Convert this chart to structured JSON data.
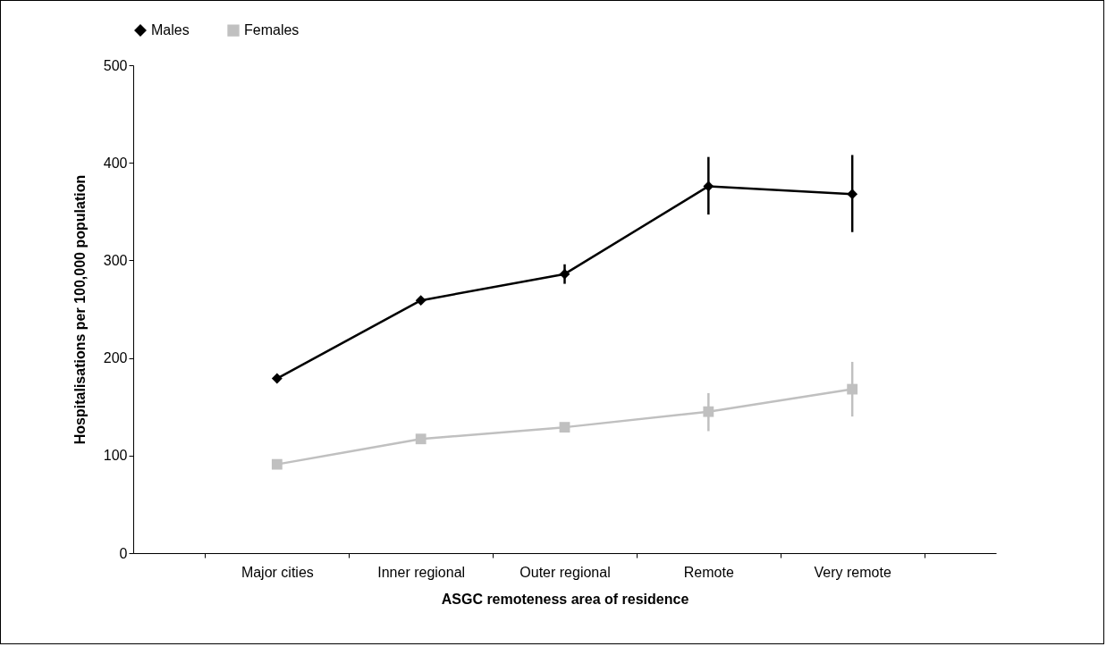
{
  "chart_data": {
    "type": "line",
    "xlabel": "ASGC remoteness area of residence",
    "ylabel": "Hospitalisations per 100,000 population",
    "categories": [
      "Major cities",
      "Inner regional",
      "Outer regional",
      "Remote",
      "Very remote"
    ],
    "series": [
      {
        "name": "Males",
        "color": "#000000",
        "marker": "diamond",
        "values": [
          179,
          259,
          286,
          376,
          368
        ],
        "errors": [
          null,
          null,
          [
            276,
            296
          ],
          [
            347,
            406
          ],
          [
            329,
            408
          ]
        ]
      },
      {
        "name": "Females",
        "color": "#c0c0c0",
        "marker": "square",
        "values": [
          91,
          117,
          129,
          145,
          168
        ],
        "errors": [
          null,
          null,
          null,
          [
            125,
            164
          ],
          [
            140,
            196
          ]
        ]
      }
    ],
    "ylim": [
      0,
      500
    ],
    "yticks": [
      0,
      100,
      200,
      300,
      400,
      500
    ],
    "grid": false,
    "legend": "top",
    "line_style": "solid"
  }
}
